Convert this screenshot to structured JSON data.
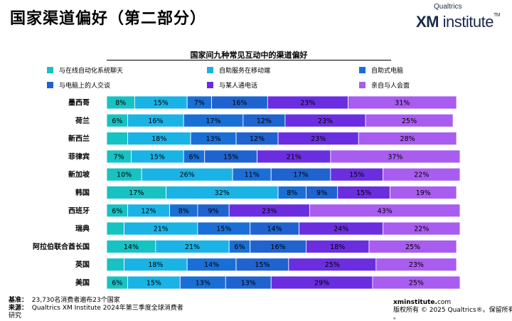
{
  "page": {
    "title": "国家渠道偏好（第二部分）",
    "logo_small": "Qualtrics",
    "logo_xm": "XM",
    "logo_rest": " institute",
    "logo_tm": "TM"
  },
  "colors": {
    "s1": "#17c2c2",
    "s2": "#1ab3e6",
    "s3": "#1a6fd6",
    "s4": "#1f63d0",
    "s5": "#6a2ee0",
    "s6": "#a85cf0",
    "text": "#000000"
  },
  "footer": {
    "base_label": "基准：",
    "base_text": "23,730名消费者遍布23个国家",
    "source_label": "来源：",
    "source_text": "Qualtrics XM Institute 2024年第三季度全球消费者",
    "source_text2": "研究",
    "site_bold": "xminstitute.",
    "site_rest": "com",
    "copyright": "版权所有 © 2025 Qualtrics®。保留所有权利",
    "copyright2": "。"
  },
  "chart_data": {
    "type": "bar",
    "orientation": "horizontal",
    "stacked": true,
    "title": "国家间九种常见互动中的渠道偏好",
    "xlim": [
      0,
      100
    ],
    "legend_position": "top",
    "categories": [
      "墨西哥",
      "荷兰",
      "新西兰",
      "菲律宾",
      "新加坡",
      "韩国",
      "西班牙",
      "瑞典",
      "阿拉伯联合酋长国",
      "英国",
      "美国"
    ],
    "series": [
      {
        "name": "与在线自动化系统聊天",
        "values": [
          8,
          6,
          6,
          7,
          10,
          17,
          6,
          5,
          14,
          5,
          6
        ],
        "labels": [
          "8%",
          "6%",
          "",
          "7%",
          "10%",
          "17%",
          "6%",
          "",
          "14%",
          "",
          "6%"
        ]
      },
      {
        "name": "自助服务在移动端",
        "values": [
          15,
          16,
          18,
          15,
          26,
          32,
          12,
          21,
          21,
          18,
          15
        ],
        "labels": [
          "15%",
          "16%",
          "18%",
          "15%",
          "26%",
          "32%",
          "12%",
          "21%",
          "21%",
          "18%",
          "15%"
        ]
      },
      {
        "name": "自助式电脑",
        "values": [
          7,
          17,
          13,
          6,
          11,
          8,
          8,
          15,
          6,
          14,
          13
        ],
        "labels": [
          "7%",
          "17%",
          "13%",
          "6%",
          "11%",
          "8%",
          "8%",
          "15%",
          "6%",
          "14%",
          "13%"
        ]
      },
      {
        "name": "与电脑上的人交谈",
        "values": [
          16,
          12,
          12,
          15,
          17,
          9,
          9,
          14,
          16,
          15,
          13
        ],
        "labels": [
          "16%",
          "12%",
          "12%",
          "15%",
          "17%",
          "9%",
          "9%",
          "14%",
          "16%",
          "15%",
          "13%"
        ]
      },
      {
        "name": "与某人通电话",
        "values": [
          23,
          23,
          23,
          21,
          15,
          15,
          23,
          24,
          18,
          25,
          29
        ],
        "labels": [
          "23%",
          "23%",
          "23%",
          "21%",
          "15%",
          "15%",
          "23%",
          "24%",
          "18%",
          "25%",
          "29%"
        ]
      },
      {
        "name": "亲自与人会面",
        "values": [
          31,
          25,
          28,
          37,
          22,
          19,
          43,
          22,
          25,
          23,
          25
        ],
        "labels": [
          "31%",
          "25%",
          "28%",
          "37%",
          "22%",
          "19%",
          "43%",
          "22%",
          "25%",
          "23%",
          "25%"
        ]
      }
    ]
  }
}
